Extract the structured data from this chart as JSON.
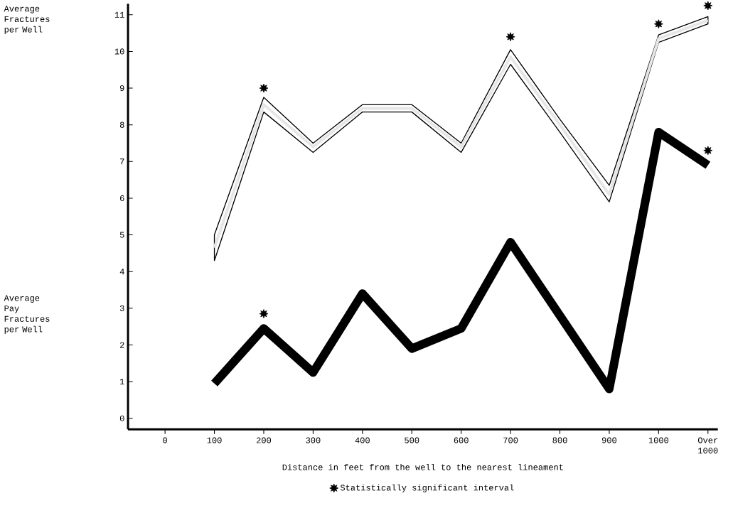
{
  "chart_data": {
    "type": "line",
    "xlabel": "Distance in feet from the well to the nearest lineament",
    "annotations": [
      "Average Fractures per Well",
      "Average Pay Fractures per Well"
    ],
    "categories": [
      "0",
      "100",
      "200",
      "300",
      "400",
      "500",
      "600",
      "700",
      "800",
      "900",
      "1000",
      "Over 1000"
    ],
    "series": [
      {
        "color": "#e6e6e6",
        "values": [
          null,
          4.65,
          8.55,
          7.4,
          8.45,
          8.45,
          7.4,
          9.85,
          8.0,
          6.1,
          10.35,
          10.85
        ],
        "lower": [
          null,
          4.3,
          8.35,
          7.25,
          8.35,
          8.35,
          7.25,
          9.65,
          7.8,
          5.9,
          10.25,
          10.75
        ],
        "upper": [
          null,
          5.0,
          8.75,
          7.5,
          8.55,
          8.55,
          7.5,
          10.05,
          8.15,
          6.35,
          10.45,
          10.95
        ]
      },
      {
        "color": "#000000",
        "values": [
          null,
          0.95,
          2.45,
          1.25,
          3.4,
          1.9,
          2.45,
          4.8,
          2.8,
          0.8,
          7.8,
          6.9
        ]
      },
      {
        "type": "scatter",
        "name": "Statistically  significant interval",
        "color": "#000000",
        "marker": "star",
        "values": [
          null,
          null,
          9.0,
          null,
          null,
          null,
          null,
          10.4,
          null,
          null,
          10.75,
          11.25
        ]
      },
      {
        "type": "scatter",
        "color": "#000000",
        "marker": "star",
        "values": [
          null,
          null,
          2.85,
          null,
          null,
          null,
          null,
          null,
          null,
          null,
          null,
          7.3
        ]
      }
    ],
    "ylim": [
      -0.3,
      11.3
    ],
    "yticks": [
      0,
      1,
      2,
      3,
      4,
      5,
      6,
      7,
      8,
      9,
      10,
      11
    ],
    "grid": false,
    "legend": "bottom"
  }
}
